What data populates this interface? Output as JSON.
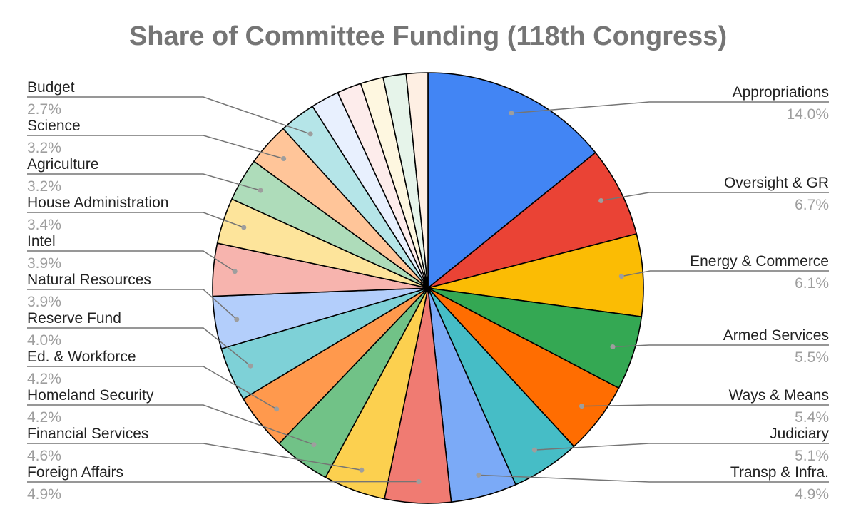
{
  "chart_data": {
    "type": "pie",
    "title": "Share of Committee Funding (118th Congress)",
    "slices": [
      {
        "label": "Appropriations",
        "pct_label": "14.0%",
        "value": 14.0,
        "color": "#4285f4"
      },
      {
        "label": "Oversight & GR",
        "pct_label": "6.7%",
        "value": 6.7,
        "color": "#ea4335"
      },
      {
        "label": "Energy & Commerce",
        "pct_label": "6.1%",
        "value": 6.1,
        "color": "#fbbc04"
      },
      {
        "label": "Armed Services",
        "pct_label": "5.5%",
        "value": 5.5,
        "color": "#34a853"
      },
      {
        "label": "Ways & Means",
        "pct_label": "5.4%",
        "value": 5.4,
        "color": "#ff6d01"
      },
      {
        "label": "Judiciary",
        "pct_label": "5.1%",
        "value": 5.1,
        "color": "#46bdc6"
      },
      {
        "label": "Transp & Infra.",
        "pct_label": "4.9%",
        "value": 4.9,
        "color": "#7baaf7"
      },
      {
        "label": "Foreign Affairs",
        "pct_label": "4.9%",
        "value": 4.9,
        "color": "#f07b72"
      },
      {
        "label": "Financial Services",
        "pct_label": "4.6%",
        "value": 4.6,
        "color": "#fcd04f"
      },
      {
        "label": "Homeland Security",
        "pct_label": "4.2%",
        "value": 4.2,
        "color": "#71c287"
      },
      {
        "label": "Ed. & Workforce",
        "pct_label": "4.2%",
        "value": 4.2,
        "color": "#ff994d"
      },
      {
        "label": "Reserve Fund",
        "pct_label": "4.0%",
        "value": 4.0,
        "color": "#7ed1d7"
      },
      {
        "label": "Natural Resources",
        "pct_label": "3.9%",
        "value": 3.9,
        "color": "#b3cefb"
      },
      {
        "label": "Intel",
        "pct_label": "3.9%",
        "value": 3.9,
        "color": "#f7b4ae"
      },
      {
        "label": "House Administration",
        "pct_label": "3.4%",
        "value": 3.4,
        "color": "#fde49b"
      },
      {
        "label": "Agriculture",
        "pct_label": "3.2%",
        "value": 3.2,
        "color": "#aedcba"
      },
      {
        "label": "Science",
        "pct_label": "3.2%",
        "value": 3.2,
        "color": "#ffc599"
      },
      {
        "label": "Budget",
        "pct_label": "2.7%",
        "value": 2.7,
        "color": "#b5e5e8"
      },
      {
        "label": "",
        "pct_label": "",
        "value": 2.1,
        "color": "#e8f0fe"
      },
      {
        "label": "",
        "pct_label": "",
        "value": 1.8,
        "color": "#fdeceb"
      },
      {
        "label": "",
        "pct_label": "",
        "value": 1.7,
        "color": "#fef7e0"
      },
      {
        "label": "",
        "pct_label": "",
        "value": 1.7,
        "color": "#e6f4ea"
      },
      {
        "label": "",
        "pct_label": "",
        "value": 1.6,
        "color": "#feefe3"
      }
    ]
  }
}
